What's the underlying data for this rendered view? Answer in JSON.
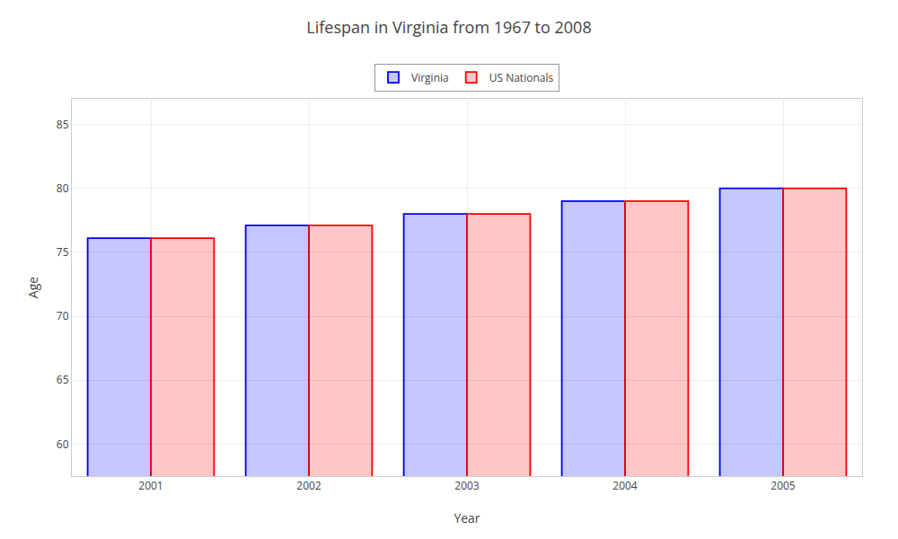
{
  "chart_data": {
    "type": "bar",
    "title": "Lifespan in Virginia from 1967 to 2008",
    "xlabel": "Year",
    "ylabel": "Age",
    "categories": [
      "2001",
      "2002",
      "2003",
      "2004",
      "2005"
    ],
    "series": [
      {
        "name": "Virginia",
        "color": "#0000ff",
        "values": [
          76.1,
          77.1,
          78.0,
          79.0,
          80.0
        ]
      },
      {
        "name": "US Nationals",
        "color": "#ff0000",
        "values": [
          76.1,
          77.1,
          78.0,
          79.0,
          80.0
        ]
      }
    ],
    "ylim": [
      57.5,
      87
    ],
    "yticks": [
      60,
      65,
      70,
      75,
      80,
      85
    ],
    "grid": true,
    "legend": "upper center"
  }
}
